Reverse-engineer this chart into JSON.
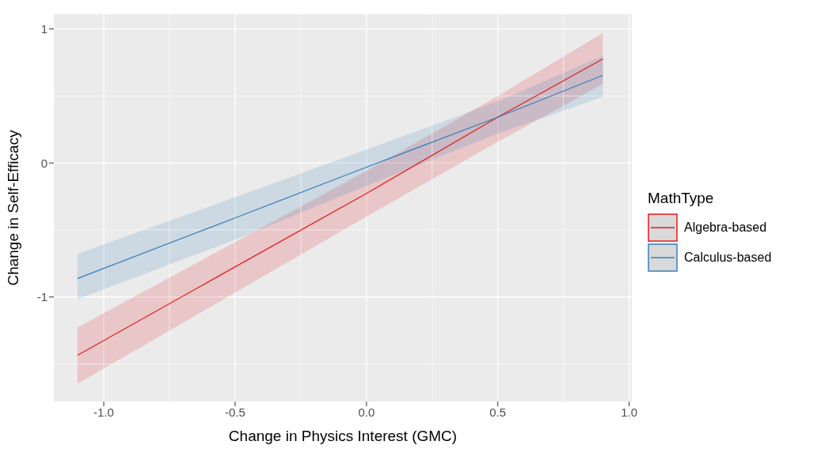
{
  "chart_data": {
    "type": "line",
    "xlabel": "Change in Physics Interest (GMC)",
    "ylabel": "Change in Self-Efficacy",
    "legend_title": "MathType",
    "x": [
      -1.1,
      -0.5,
      0,
      0.5,
      0.9
    ],
    "series": [
      {
        "name": "Algebra-based",
        "color": "#e41a1c",
        "values": [
          -1.435,
          -0.775,
          -0.227,
          0.342,
          0.777
        ],
        "lower": [
          -1.647,
          -0.968,
          -0.4,
          0.157,
          0.59
        ],
        "upper": [
          -1.227,
          -0.59,
          -0.06,
          0.5,
          0.971
        ]
      },
      {
        "name": "Calculus-based",
        "color": "#377eb8",
        "values": [
          -0.862,
          -0.41,
          -0.031,
          0.342,
          0.654
        ],
        "lower": [
          -1.016,
          -0.573,
          -0.17,
          0.22,
          0.494
        ],
        "upper": [
          -0.679,
          -0.256,
          0.1,
          0.46,
          0.8
        ]
      }
    ],
    "xlim": [
      -1.19,
      1.01
    ],
    "ylim": [
      -1.78,
      1.11
    ],
    "xticks": [
      {
        "value": -1,
        "label": "-1.0"
      },
      {
        "value": -0.5,
        "label": "-0.5"
      },
      {
        "value": 0,
        "label": "0.0"
      },
      {
        "value": 0.5,
        "label": "0.5"
      },
      {
        "value": 1,
        "label": "1.0"
      }
    ],
    "yticks": [
      -1,
      0,
      1
    ],
    "grid": true,
    "legend": "right",
    "marker": "none",
    "line_style": "solid"
  }
}
